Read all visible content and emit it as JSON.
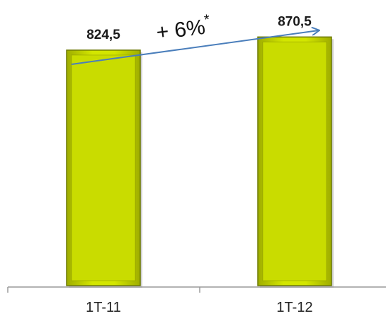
{
  "chart_data": {
    "type": "bar",
    "categories": [
      "1T-11",
      "1T-12"
    ],
    "values": [
      824.5,
      870.5
    ],
    "value_labels": [
      "824,5",
      "870,5"
    ],
    "ylim": [
      0,
      1000
    ],
    "grid": false,
    "bar_color": "#c9dc00",
    "bar_edge_color": "#6b7800",
    "annotations": [
      {
        "text": "+ 6%",
        "sup": "*",
        "type": "arrow",
        "from": "1T-11",
        "to": "1T-12"
      }
    ]
  },
  "colors": {
    "arrow": "#4a7ebb",
    "axis": "#9a9a9a"
  }
}
